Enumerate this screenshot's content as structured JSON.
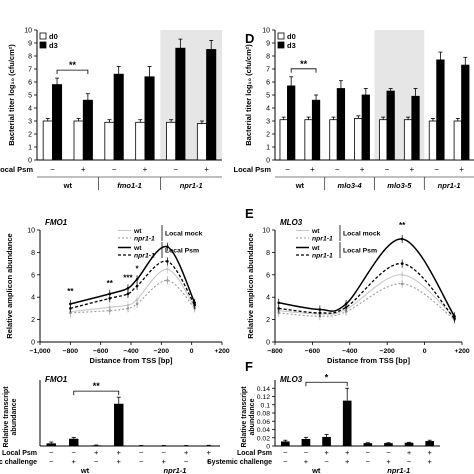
{
  "colors": {
    "black": "#000000",
    "white": "#ffffff",
    "shade": "#e6e6e6",
    "grey": "#9a9a9a",
    "lightgrey": "#c8c8c8"
  },
  "chart_data": [
    {
      "id": "A",
      "type": "bar",
      "ylabel": "Bacterial titer log₁₀ (cfu/cm²)",
      "ylim": [
        0,
        10
      ],
      "yticks": [
        0,
        1,
        2,
        3,
        4,
        5,
        6,
        7,
        8,
        9,
        10
      ],
      "legend": [
        "d0",
        "d3"
      ],
      "legend_position": "top-left",
      "row_label": "Local Psm",
      "signs": [
        "-",
        "+",
        "-",
        "+",
        "-",
        "+"
      ],
      "groups": [
        "wt",
        "fmo1-1",
        "npr1-1"
      ],
      "shaded_groups": [
        false,
        false,
        true
      ],
      "series": [
        {
          "name": "d0",
          "values": [
            3.0,
            3.0,
            2.9,
            2.9,
            2.9,
            2.8
          ],
          "errors": [
            0.2,
            0.2,
            0.2,
            0.2,
            0.2,
            0.2
          ]
        },
        {
          "name": "d3",
          "values": [
            5.8,
            4.6,
            6.6,
            6.4,
            8.6,
            8.5
          ],
          "errors": [
            0.5,
            0.5,
            0.6,
            0.8,
            0.7,
            0.7
          ]
        }
      ],
      "significance": [
        {
          "bars": [
            0,
            1
          ],
          "label": "**"
        }
      ]
    },
    {
      "id": "D",
      "type": "bar",
      "ylabel": "Bacterial titer log₁₀ (cfu/cm²)",
      "ylim": [
        0,
        10
      ],
      "yticks": [
        0,
        1,
        2,
        3,
        4,
        5,
        6,
        7,
        8,
        9,
        10
      ],
      "legend": [
        "d0",
        "d3"
      ],
      "legend_position": "top-left",
      "row_label": "Local Psm",
      "signs": [
        "-",
        "+",
        "-",
        "+",
        "-",
        "+",
        "-",
        "+"
      ],
      "groups": [
        "wt",
        "mlo3-4",
        "mlo3-5",
        "npr1-1"
      ],
      "shaded_groups": [
        false,
        false,
        true,
        false
      ],
      "series": [
        {
          "name": "d0",
          "values": [
            3.1,
            3.1,
            3.1,
            3.2,
            3.1,
            3.1,
            3.0,
            3.0
          ],
          "errors": [
            0.2,
            0.2,
            0.2,
            0.2,
            0.2,
            0.2,
            0.2,
            0.2
          ]
        },
        {
          "name": "d3",
          "values": [
            5.7,
            4.6,
            5.5,
            5.0,
            5.3,
            4.9,
            7.7,
            7.3
          ],
          "errors": [
            0.7,
            0.4,
            0.6,
            0.5,
            0.2,
            0.6,
            0.6,
            0.6
          ]
        }
      ],
      "significance": [
        {
          "bars": [
            0,
            1
          ],
          "label": "**"
        }
      ]
    },
    {
      "id": "B",
      "type": "line",
      "title": "FMO1",
      "xlabel": "Distance from TSS [bp]",
      "ylabel": "Relative amplicon abundance",
      "xlim": [
        -1000,
        200
      ],
      "ylim": [
        0,
        10
      ],
      "xticks": [
        -1000,
        -800,
        -600,
        -400,
        -200,
        0,
        200
      ],
      "xtick_labels": [
        "−1,000",
        "−800",
        "−600",
        "−400",
        "−200",
        "0",
        "+200"
      ],
      "yticks": [
        0,
        2,
        4,
        6,
        8,
        10
      ],
      "x": [
        -800,
        -540,
        -420,
        -360,
        -160,
        20
      ],
      "legend_mock": [
        "wt",
        "npr1-1"
      ],
      "legend_mock_label": "Local mock",
      "legend_psm": [
        "wt",
        "npr1-1"
      ],
      "legend_psm_label": "Local Psm",
      "series": [
        {
          "name": "wt",
          "group": "Local mock",
          "values": [
            2.7,
            3.1,
            3.3,
            3.8,
            6.5,
            3.1
          ]
        },
        {
          "name": "npr1-1",
          "group": "Local mock",
          "values": [
            2.6,
            2.8,
            3.0,
            3.4,
            5.5,
            3.0
          ]
        },
        {
          "name": "wt",
          "group": "Local Psm",
          "values": [
            3.4,
            4.3,
            4.8,
            5.6,
            8.5,
            3.5
          ]
        },
        {
          "name": "npr1-1",
          "group": "Local Psm",
          "values": [
            3.0,
            3.9,
            4.3,
            5.0,
            7.2,
            3.3
          ]
        }
      ],
      "annotations": [
        {
          "x": -800,
          "y": 4.3,
          "label": "**"
        },
        {
          "x": -540,
          "y": 5.0,
          "label": "**"
        },
        {
          "x": -420,
          "y": 5.5,
          "label": "***"
        },
        {
          "x": -360,
          "y": 6.3,
          "label": "*"
        }
      ]
    },
    {
      "id": "E",
      "type": "line",
      "title": "MLO3",
      "xlabel": "Distance from TSS [bp]",
      "ylabel": "Relative amplicon abundance",
      "xlim": [
        -800,
        200
      ],
      "ylim": [
        0,
        10
      ],
      "xticks": [
        -800,
        -600,
        -400,
        -200,
        0,
        200
      ],
      "xtick_labels": [
        "−800",
        "−600",
        "−400",
        "−200",
        "0",
        "+200"
      ],
      "yticks": [
        0,
        2,
        4,
        6,
        8,
        10
      ],
      "x": [
        -780,
        -560,
        -420,
        -120,
        160
      ],
      "legend_mock": [
        "wt",
        "npr1-1"
      ],
      "legend_mock_label": "Local mock",
      "legend_psm": [
        "wt",
        "npr1-1"
      ],
      "legend_psm_label": "Local Psm",
      "series": [
        {
          "name": "wt",
          "group": "Local mock",
          "values": [
            2.8,
            2.5,
            2.9,
            6.0,
            2.2
          ]
        },
        {
          "name": "npr1-1",
          "group": "Local mock",
          "values": [
            2.6,
            2.3,
            2.7,
            5.2,
            2.0
          ]
        },
        {
          "name": "wt",
          "group": "Local Psm",
          "values": [
            3.5,
            2.9,
            3.4,
            9.2,
            2.3
          ]
        },
        {
          "name": "npr1-1",
          "group": "Local Psm",
          "values": [
            3.0,
            2.6,
            3.1,
            7.0,
            2.1
          ]
        }
      ],
      "annotations": [
        {
          "x": -120,
          "y": 10.2,
          "label": "**"
        }
      ]
    },
    {
      "id": "C",
      "type": "bar",
      "title": "FMO1",
      "ylabel": "Relative transcript abundance",
      "row_labels": [
        "Local Psm",
        "Systemic challenge"
      ],
      "local_signs": [
        "-",
        "-",
        "+",
        "+",
        "-",
        "-",
        "+",
        "+"
      ],
      "systemic_signs": [
        "-",
        "+",
        "-",
        "+",
        "-",
        "+",
        "-",
        "+"
      ],
      "groups": [
        "wt",
        "npr1-1"
      ],
      "ylim": [
        0,
        0.1
      ],
      "values": [
        0.004,
        0.011,
        0.001,
        0.064,
        0.0005,
        0.0005,
        0.0005,
        0.0008
      ],
      "errors": [
        0.002,
        0.002,
        0.0005,
        0.01,
        0.0003,
        0.0003,
        0.0003,
        0.0003
      ],
      "significance": [
        {
          "bars": [
            1,
            3
          ],
          "label": "**"
        }
      ]
    },
    {
      "id": "F",
      "type": "bar",
      "title": "MLO3",
      "ylabel": "Relative transcript abundance",
      "row_labels": [
        "Local Psm",
        "Systemic challenge"
      ],
      "local_signs": [
        "-",
        "-",
        "+",
        "+",
        "-",
        "-",
        "+",
        "+"
      ],
      "systemic_signs": [
        "-",
        "+",
        "-",
        "+",
        "-",
        "+",
        "-",
        "+"
      ],
      "groups": [
        "wt",
        "npr1-1"
      ],
      "ylim": [
        0,
        0.16
      ],
      "yticks": [
        0,
        0.02,
        0.04,
        0.06,
        0.08,
        0.1,
        0.12,
        0.14
      ],
      "ytick_labels": [
        "0",
        "0.02",
        "0.04",
        "0.06",
        "0.08",
        "0.1",
        "0.12",
        "0.14"
      ],
      "values": [
        0.011,
        0.017,
        0.022,
        0.11,
        0.007,
        0.007,
        0.008,
        0.012
      ],
      "errors": [
        0.003,
        0.004,
        0.006,
        0.03,
        0.001,
        0.001,
        0.001,
        0.002
      ],
      "significance": [
        {
          "bars": [
            1,
            3
          ],
          "label": "*"
        }
      ]
    }
  ],
  "panel_letters": [
    "D",
    "E",
    "F"
  ]
}
